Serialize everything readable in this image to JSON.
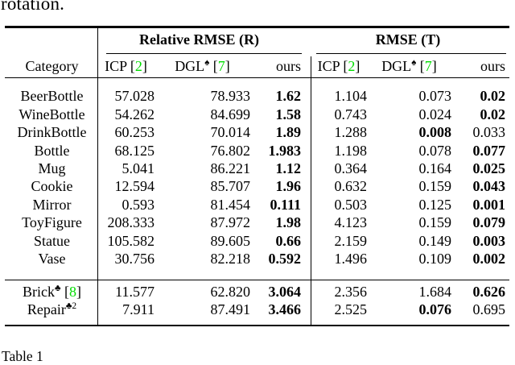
{
  "page": {
    "top_text": "rotation.",
    "bottom_caption": "Table 1"
  },
  "colors": {
    "citation_green": "#00dd00"
  },
  "table": {
    "group_headers": {
      "r": "Relative RMSE (R)",
      "t": "RMSE (T)"
    },
    "headers": {
      "category": "Category",
      "icp": "ICP [",
      "icp_cite": "2",
      "close": "]",
      "dgl": "DGL",
      "dgl_sup": "♠",
      "open": " [",
      "dgl_cite": "7",
      "ours": "ours"
    },
    "rows": [
      {
        "category": "BeerBottle",
        "values": [
          "57.028",
          "78.933",
          "1.62",
          "1.104",
          "0.073",
          "0.02"
        ]
      },
      {
        "category": "WineBottle",
        "values": [
          "54.262",
          "84.699",
          "1.58",
          "0.743",
          "0.024",
          "0.02"
        ]
      },
      {
        "category": "DrinkBottle",
        "values": [
          "60.253",
          "70.014",
          "1.89",
          "1.288",
          "0.008",
          "0.033"
        ]
      },
      {
        "category": "Bottle",
        "values": [
          "68.125",
          "76.802",
          "1.983",
          "1.198",
          "0.078",
          "0.077"
        ]
      },
      {
        "category": "Mug",
        "values": [
          "5.041",
          "86.221",
          "1.12",
          "0.364",
          "0.164",
          "0.025"
        ]
      },
      {
        "category": "Cookie",
        "values": [
          "12.594",
          "85.707",
          "1.96",
          "0.632",
          "0.159",
          "0.043"
        ]
      },
      {
        "category": "Mirror",
        "values": [
          "0.593",
          "81.454",
          "0.111",
          "0.503",
          "0.125",
          "0.001"
        ]
      },
      {
        "category": "ToyFigure",
        "values": [
          "208.333",
          "87.972",
          "1.98",
          "4.123",
          "0.159",
          "0.079"
        ]
      },
      {
        "category": "Statue",
        "values": [
          "105.582",
          "89.605",
          "0.66",
          "2.159",
          "0.149",
          "0.003"
        ]
      },
      {
        "category": "Vase",
        "values": [
          "30.756",
          "82.218",
          "0.592",
          "1.496",
          "0.109",
          "0.002"
        ]
      }
    ],
    "footer_rows": [
      {
        "name": "Brick",
        "sup": "♣",
        "open": " [",
        "cite": "8",
        "close": "]",
        "values": [
          "11.577",
          "62.820",
          "3.064",
          "2.356",
          "1.684",
          "0.626"
        ]
      },
      {
        "name": "Repair",
        "sup": "♣2",
        "values": [
          "7.911",
          "87.491",
          "3.466",
          "2.525",
          "0.076",
          "0.695"
        ]
      }
    ]
  }
}
